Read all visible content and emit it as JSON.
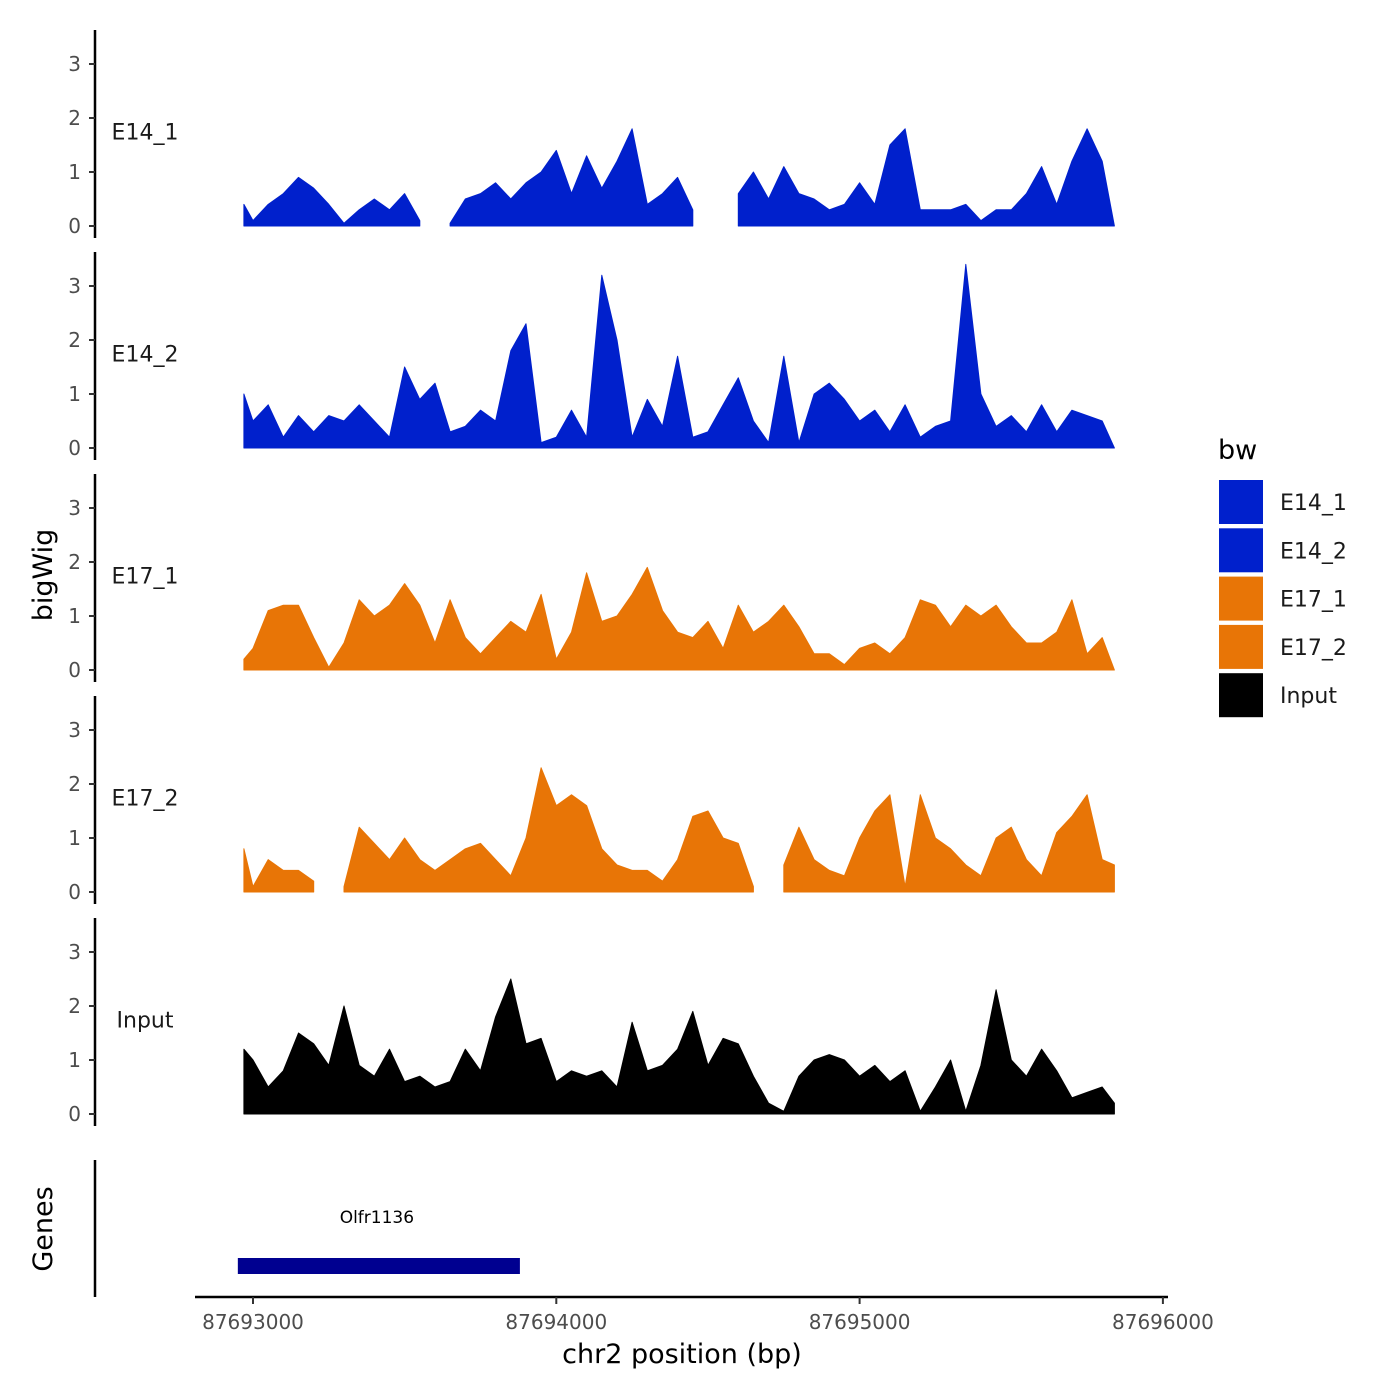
{
  "chart_data": {
    "type": "area",
    "title": "",
    "ylabel": "bigWig",
    "xlabel": "chr2 position (bp)",
    "genes_label": "Genes",
    "xlim": [
      87692860,
      87696000
    ],
    "ylim": [
      0,
      3.6
    ],
    "x_ticks": [
      87693000,
      87694000,
      87695000,
      87696000
    ],
    "x_tick_labels": [
      "87693000",
      "87694000",
      "87695000",
      "87696000"
    ],
    "y_ticks": [
      0,
      1,
      2,
      3
    ],
    "y_tick_labels": [
      "0",
      "1",
      "2",
      "3"
    ],
    "x": [
      87692970,
      87693000,
      87693050,
      87693100,
      87693150,
      87693200,
      87693250,
      87693300,
      87693350,
      87693400,
      87693450,
      87693500,
      87693550,
      87693600,
      87693650,
      87693700,
      87693750,
      87693800,
      87693850,
      87693900,
      87693950,
      87694000,
      87694050,
      87694100,
      87694150,
      87694200,
      87694250,
      87694300,
      87694350,
      87694400,
      87694450,
      87694500,
      87694550,
      87694600,
      87694650,
      87694700,
      87694750,
      87694800,
      87694850,
      87694900,
      87694950,
      87695000,
      87695050,
      87695100,
      87695150,
      87695200,
      87695250,
      87695300,
      87695350,
      87695400,
      87695450,
      87695500,
      87695550,
      87695600,
      87695650,
      87695700,
      87695750,
      87695800,
      87695840
    ],
    "series": [
      {
        "name": "E14_1",
        "color": "#0020CC",
        "values": [
          0.4,
          0.1,
          0.4,
          0.6,
          0.9,
          0.7,
          0.4,
          0.05,
          0.3,
          0.5,
          0.3,
          0.6,
          0.1,
          null,
          0.05,
          0.5,
          0.6,
          0.8,
          0.5,
          0.8,
          1.0,
          1.4,
          0.6,
          1.3,
          0.7,
          1.2,
          1.8,
          0.4,
          0.6,
          0.9,
          0.3,
          null,
          null,
          0.6,
          1.0,
          0.5,
          1.1,
          0.6,
          0.5,
          0.3,
          0.4,
          0.8,
          0.4,
          1.5,
          1.8,
          0.3,
          0.3,
          0.3,
          0.4,
          0.1,
          0.3,
          0.3,
          0.6,
          1.1,
          0.4,
          1.2,
          1.8,
          1.2,
          0.0
        ]
      },
      {
        "name": "E14_2",
        "color": "#0020CC",
        "values": [
          1.0,
          0.5,
          0.8,
          0.2,
          0.6,
          0.3,
          0.6,
          0.5,
          0.8,
          0.5,
          0.2,
          1.5,
          0.9,
          1.2,
          0.3,
          0.4,
          0.7,
          0.5,
          1.8,
          2.3,
          0.1,
          0.2,
          0.7,
          0.2,
          3.2,
          2.0,
          0.2,
          0.9,
          0.4,
          1.7,
          0.2,
          0.3,
          0.8,
          1.3,
          0.5,
          0.1,
          1.7,
          0.1,
          1.0,
          1.2,
          0.9,
          0.5,
          0.7,
          0.3,
          0.8,
          0.2,
          0.4,
          0.5,
          3.4,
          1.0,
          0.4,
          0.6,
          0.3,
          0.8,
          0.3,
          0.7,
          0.6,
          0.5,
          0.0
        ]
      },
      {
        "name": "E17_1",
        "color": "#E87506",
        "values": [
          0.2,
          0.4,
          1.1,
          1.2,
          1.2,
          0.6,
          0.05,
          0.5,
          1.3,
          1.0,
          1.2,
          1.6,
          1.2,
          0.5,
          1.3,
          0.6,
          0.3,
          0.6,
          0.9,
          0.7,
          1.4,
          0.2,
          0.7,
          1.8,
          0.9,
          1.0,
          1.4,
          1.9,
          1.1,
          0.7,
          0.6,
          0.9,
          0.4,
          1.2,
          0.7,
          0.9,
          1.2,
          0.8,
          0.3,
          0.3,
          0.1,
          0.4,
          0.5,
          0.3,
          0.6,
          1.3,
          1.2,
          0.8,
          1.2,
          1.0,
          1.2,
          0.8,
          0.5,
          0.5,
          0.7,
          1.3,
          0.3,
          0.6,
          0.0
        ]
      },
      {
        "name": "E17_2",
        "color": "#E87506",
        "values": [
          0.8,
          0.1,
          0.6,
          0.4,
          0.4,
          0.2,
          null,
          0.1,
          1.2,
          0.9,
          0.6,
          1.0,
          0.6,
          0.4,
          0.6,
          0.8,
          0.9,
          0.6,
          0.3,
          1.0,
          2.3,
          1.6,
          1.8,
          1.6,
          0.8,
          0.5,
          0.4,
          0.4,
          0.2,
          0.6,
          1.4,
          1.5,
          1.0,
          0.9,
          0.1,
          null,
          0.5,
          1.2,
          0.6,
          0.4,
          0.3,
          1.0,
          1.5,
          1.8,
          0.1,
          1.8,
          1.0,
          0.8,
          0.5,
          0.3,
          1.0,
          1.2,
          0.6,
          0.3,
          1.1,
          1.4,
          1.8,
          0.6,
          0.5
        ]
      },
      {
        "name": "Input",
        "color": "#000000",
        "values": [
          1.2,
          1.0,
          0.5,
          0.8,
          1.5,
          1.3,
          0.9,
          2.0,
          0.9,
          0.7,
          1.2,
          0.6,
          0.7,
          0.5,
          0.6,
          1.2,
          0.8,
          1.8,
          2.5,
          1.3,
          1.4,
          0.6,
          0.8,
          0.7,
          0.8,
          0.5,
          1.7,
          0.8,
          0.9,
          1.2,
          1.9,
          0.9,
          1.4,
          1.3,
          0.7,
          0.2,
          0.05,
          0.7,
          1.0,
          1.1,
          1.0,
          0.7,
          0.9,
          0.6,
          0.8,
          0.05,
          0.5,
          1.0,
          0.05,
          0.9,
          2.3,
          1.0,
          0.7,
          1.2,
          0.8,
          0.3,
          0.4,
          0.5,
          0.2
        ]
      }
    ],
    "legend": {
      "title": "bw",
      "position": "right",
      "entries": [
        {
          "label": "E14_1",
          "color": "#0020CC"
        },
        {
          "label": "E14_2",
          "color": "#0020CC"
        },
        {
          "label": "E17_1",
          "color": "#E87506"
        },
        {
          "label": "E17_2",
          "color": "#E87506"
        },
        {
          "label": "Input",
          "color": "#000000"
        }
      ]
    },
    "genes": [
      {
        "name": "Olfr1136",
        "start": 87692950,
        "end": 87693880,
        "color": "#000090"
      }
    ]
  }
}
